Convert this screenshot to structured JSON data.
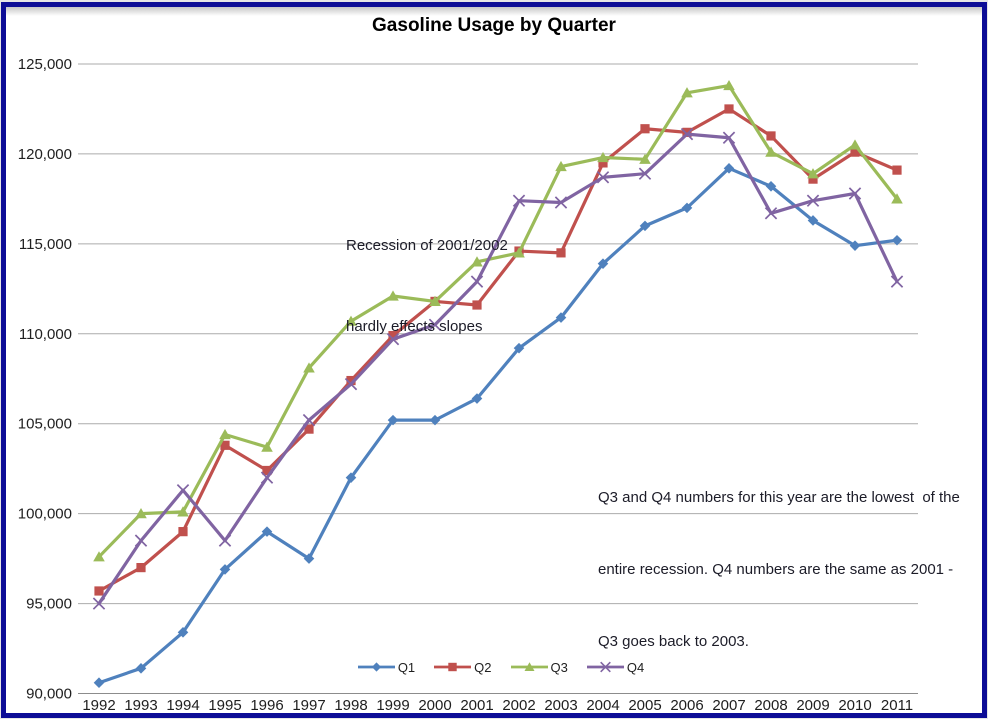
{
  "chart_data": {
    "type": "line",
    "title": "Gasoline Usage by Quarter",
    "x": [
      "1992",
      "1993",
      "1994",
      "1995",
      "1996",
      "1997",
      "1998",
      "1999",
      "2000",
      "2001",
      "2002",
      "2003",
      "2004",
      "2005",
      "2006",
      "2007",
      "2008",
      "2009",
      "2010",
      "2011"
    ],
    "series": [
      {
        "name": "Q1",
        "color": "#4F81BD",
        "marker": "diamond",
        "values": [
          90600,
          91400,
          93400,
          96900,
          99000,
          97500,
          102000,
          105200,
          105200,
          106400,
          109200,
          110900,
          113900,
          116000,
          117000,
          119200,
          118200,
          116300,
          114900,
          115200
        ]
      },
      {
        "name": "Q2",
        "color": "#C0504D",
        "marker": "square",
        "values": [
          95700,
          97000,
          99000,
          103800,
          102400,
          104700,
          107400,
          109900,
          111800,
          111600,
          114600,
          114500,
          119500,
          121400,
          121200,
          122500,
          121000,
          118600,
          120100,
          119100
        ]
      },
      {
        "name": "Q3",
        "color": "#9BBB59",
        "marker": "triangle",
        "values": [
          97600,
          100000,
          100100,
          104400,
          103700,
          108100,
          110700,
          112100,
          111800,
          114000,
          114500,
          119300,
          119800,
          119700,
          123400,
          123800,
          120100,
          118900,
          120500,
          117500
        ]
      },
      {
        "name": "Q4",
        "color": "#8064A2",
        "marker": "x",
        "values": [
          95000,
          98500,
          101300,
          98500,
          102000,
          105200,
          107200,
          109700,
          110500,
          112900,
          117400,
          117300,
          118700,
          118900,
          121100,
          120900,
          116700,
          117400,
          117800,
          112900
        ]
      }
    ],
    "ylim": [
      90000,
      125000
    ],
    "ytick_step": 5000,
    "ytick_labels": [
      "90,000",
      "95,000",
      "100,000",
      "105,000",
      "110,000",
      "115,000",
      "120,000",
      "125,000"
    ],
    "grid": true,
    "legend_position": "bottom-center",
    "annotations": [
      {
        "lines": [
          "Recession of 2001/2002",
          "hardly effects slopes"
        ]
      },
      {
        "lines": [
          "Q3 and Q4 numbers for this year are the lowest  of the",
          "entire recession. Q4 numbers are the same as 2001 -",
          "Q3 goes back to 2003."
        ]
      }
    ]
  },
  "colors": {
    "frame_border": "#0d0d96",
    "gridline": "#ababab",
    "axis_line": "#8c8c8c",
    "title_text": "#000000",
    "axis_text": "#202020",
    "annotation_text": "#1c1c28"
  }
}
